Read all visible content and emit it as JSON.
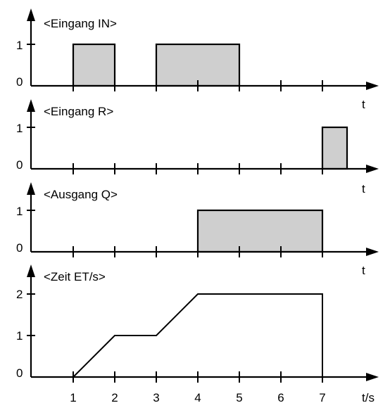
{
  "panels": [
    {
      "label": "<Eingang IN>",
      "y_ticks": [
        "0",
        "1"
      ],
      "x_axis_label": "t",
      "pulses": [
        [
          1,
          2
        ],
        [
          3,
          5
        ]
      ],
      "level": 1
    },
    {
      "label": "<Eingang R>",
      "y_ticks": [
        "0",
        "1"
      ],
      "x_axis_label": "t",
      "pulses": [
        [
          7,
          7.6
        ]
      ],
      "level": 1
    },
    {
      "label": "<Ausgang Q>",
      "y_ticks": [
        "0",
        "1"
      ],
      "x_axis_label": "t",
      "pulses": [
        [
          4,
          7
        ]
      ],
      "level": 1
    },
    {
      "label": "<Zeit ET/s>",
      "y_ticks": [
        "0",
        "1",
        "2"
      ],
      "x_axis_label": "t/s",
      "x_tick_labels": [
        "1",
        "2",
        "3",
        "4",
        "5",
        "6",
        "7"
      ],
      "curve": [
        [
          1,
          0
        ],
        [
          2,
          1
        ],
        [
          3,
          1
        ],
        [
          4,
          2
        ],
        [
          7,
          2
        ],
        [
          7,
          0
        ]
      ]
    }
  ],
  "colors": {
    "pulse_fill": "#cfcfcf",
    "line": "#000000"
  }
}
